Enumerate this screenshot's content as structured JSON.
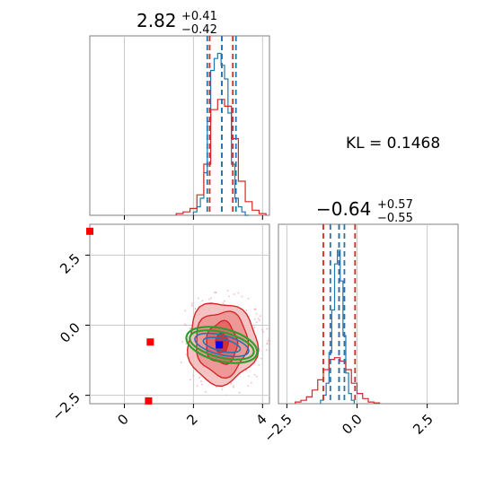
{
  "colors": {
    "blue": "#1f77b4",
    "red": "#d62728",
    "green": "#2ca02c",
    "marker_blue": "#0000ff",
    "marker_red": "#ff0000",
    "grid": "#c8c8c8",
    "frame": "#808080"
  },
  "chart_data": {
    "type": "corner",
    "kl_label": "KL = 0.1468",
    "grid": true,
    "panels": [
      {
        "id": "hist-x",
        "type": "histogram",
        "xlim": [
          -1,
          4.2
        ],
        "title": {
          "main": "2.82",
          "plus": "+0.41",
          "minus": "−0.42"
        },
        "quantile_lines_blue": [
          2.4,
          2.82,
          3.23
        ],
        "quantile_lines_red": [
          2.47,
          2.82,
          3.14
        ],
        "series": [
          {
            "name": "blue",
            "style": "step",
            "bins": [
              2.0,
              2.1,
              2.2,
              2.3,
              2.4,
              2.5,
              2.6,
              2.7,
              2.8,
              2.9,
              3.0,
              3.1,
              3.2,
              3.3,
              3.4,
              3.5,
              3.6
            ],
            "heights": [
              0.02,
              0.05,
              0.1,
              0.25,
              0.55,
              0.85,
              0.92,
              0.95,
              0.88,
              0.8,
              0.6,
              0.3,
              0.1,
              0.05,
              0.02,
              0.0
            ]
          },
          {
            "name": "red",
            "style": "step",
            "bins": [
              1.5,
              1.7,
              1.9,
              2.1,
              2.3,
              2.5,
              2.7,
              2.9,
              3.1,
              3.3,
              3.5,
              3.7,
              3.9,
              4.1
            ],
            "heights": [
              0.01,
              0.02,
              0.04,
              0.12,
              0.3,
              0.62,
              0.68,
              0.64,
              0.45,
              0.2,
              0.08,
              0.03,
              0.01
            ]
          }
        ]
      },
      {
        "id": "hist-y",
        "type": "histogram",
        "xlim": [
          -2.8,
          3.6
        ],
        "xticks": [
          "−2.5",
          "0.0",
          "2.5"
        ],
        "title": {
          "main": "−0.64",
          "plus": "+0.57",
          "minus": "−0.55"
        },
        "quantile_lines_blue": [
          -0.95,
          -0.64,
          -0.45
        ],
        "quantile_lines_red": [
          -1.2,
          -0.64,
          -0.07
        ],
        "series": [
          {
            "name": "blue",
            "style": "step",
            "bins": [
              -1.3,
              -1.2,
              -1.1,
              -1.0,
              -0.9,
              -0.8,
              -0.7,
              -0.6,
              -0.5,
              -0.4,
              -0.3,
              -0.2,
              -0.1
            ],
            "heights": [
              0.02,
              0.05,
              0.12,
              0.3,
              0.55,
              0.82,
              0.9,
              0.72,
              0.4,
              0.18,
              0.06,
              0.02
            ]
          },
          {
            "name": "red",
            "style": "step",
            "bins": [
              -2.2,
              -2.0,
              -1.8,
              -1.6,
              -1.4,
              -1.2,
              -1.0,
              -0.8,
              -0.6,
              -0.4,
              -0.2,
              0.0,
              0.2,
              0.4,
              0.6,
              0.8
            ],
            "heights": [
              0.01,
              0.02,
              0.04,
              0.08,
              0.14,
              0.2,
              0.26,
              0.27,
              0.25,
              0.2,
              0.12,
              0.06,
              0.03,
              0.01,
              0.005
            ]
          }
        ]
      },
      {
        "id": "scatter-2d",
        "type": "contour",
        "xlim": [
          -1,
          4.2
        ],
        "ylim": [
          -2.8,
          3.6
        ],
        "xticks": [
          "0",
          "2",
          "4"
        ],
        "yticks": [
          "2.5",
          "0.0",
          "−2.5"
        ],
        "center": [
          2.82,
          -0.64
        ],
        "red_contours": [
          {
            "rx": 0.18,
            "ry": 0.35
          },
          {
            "rx": 0.45,
            "ry": 0.75
          },
          {
            "rx": 0.75,
            "ry": 1.15
          },
          {
            "rx": 1.0,
            "ry": 1.45
          }
        ],
        "green_ellipses": [
          {
            "rx": 0.95,
            "ry": 0.45
          },
          {
            "rx": 1.05,
            "ry": 0.58
          }
        ],
        "blue_ellipses": [
          {
            "rx": 0.55,
            "ry": 0.22
          },
          {
            "rx": 0.8,
            "ry": 0.35
          }
        ],
        "blue_marker": [
          2.75,
          -0.7
        ],
        "red_markers": [
          [
            -1.0,
            3.35
          ],
          [
            0.75,
            -0.6
          ],
          [
            0.7,
            -2.7
          ]
        ]
      }
    ]
  }
}
